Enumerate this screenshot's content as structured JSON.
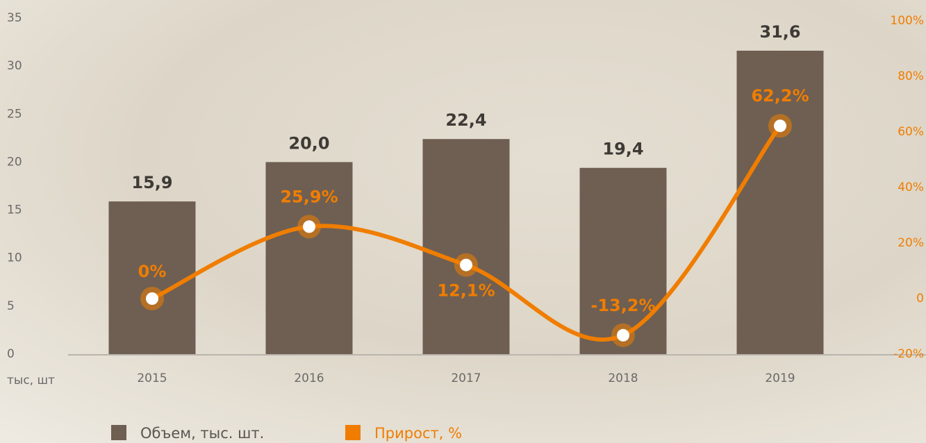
{
  "chart_data": {
    "type": "bar",
    "y_label": "тыс, шт",
    "categories": [
      "2015",
      "2016",
      "2017",
      "2018",
      "2019"
    ],
    "series": [
      {
        "name": "Объем, тыс. шт.",
        "color": "#6e5f52",
        "type": "bar",
        "values": [
          15.9,
          20.0,
          22.4,
          19.4,
          31.6
        ],
        "value_labels": [
          "15,9",
          "20,0",
          "22,4",
          "19,4",
          "31,6"
        ]
      },
      {
        "name": "Прирост, %",
        "color": "#f07d00",
        "type": "line",
        "axis": "y2",
        "values": [
          0,
          25.9,
          12.1,
          -13.2,
          62.2
        ],
        "value_labels": [
          "0%",
          "25,9%",
          "12,1%",
          "-13,2%",
          "62,2%"
        ]
      }
    ],
    "ylim": [
      0,
      35
    ],
    "yticks": [
      0,
      5,
      10,
      15,
      20,
      25,
      30,
      35
    ],
    "y2lim": [
      -20,
      100
    ],
    "y2ticks": [
      {
        "value": -20,
        "label": "-20%"
      },
      0,
      {
        "value": 20,
        "label": "20%"
      },
      {
        "value": 40,
        "label": "40%"
      },
      {
        "value": 60,
        "label": "60%"
      },
      {
        "value": 80,
        "label": "80%"
      },
      {
        "value": 100,
        "label": "100%"
      }
    ],
    "grid": false
  }
}
